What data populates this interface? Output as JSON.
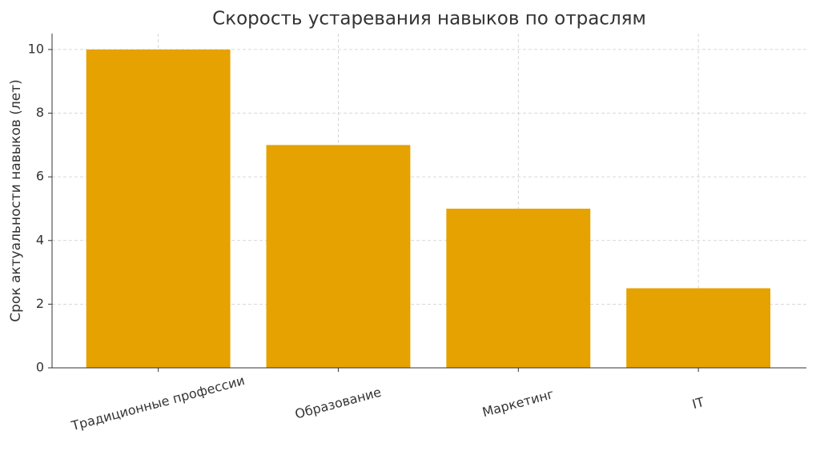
{
  "chart_data": {
    "type": "bar",
    "title": "Скорость устаревания навыков по отраслям",
    "y_label": "Срок актуальности навыков (лет)",
    "categories": [
      "Традиционные профессии",
      "Образование",
      "Маркетинг",
      "IT"
    ],
    "values": [
      10,
      7,
      5,
      2.5
    ],
    "color": "#e5a200",
    "ylim": [
      0,
      10.5
    ],
    "yticks": [
      0,
      2,
      4,
      6,
      8,
      10
    ],
    "grid": true
  }
}
